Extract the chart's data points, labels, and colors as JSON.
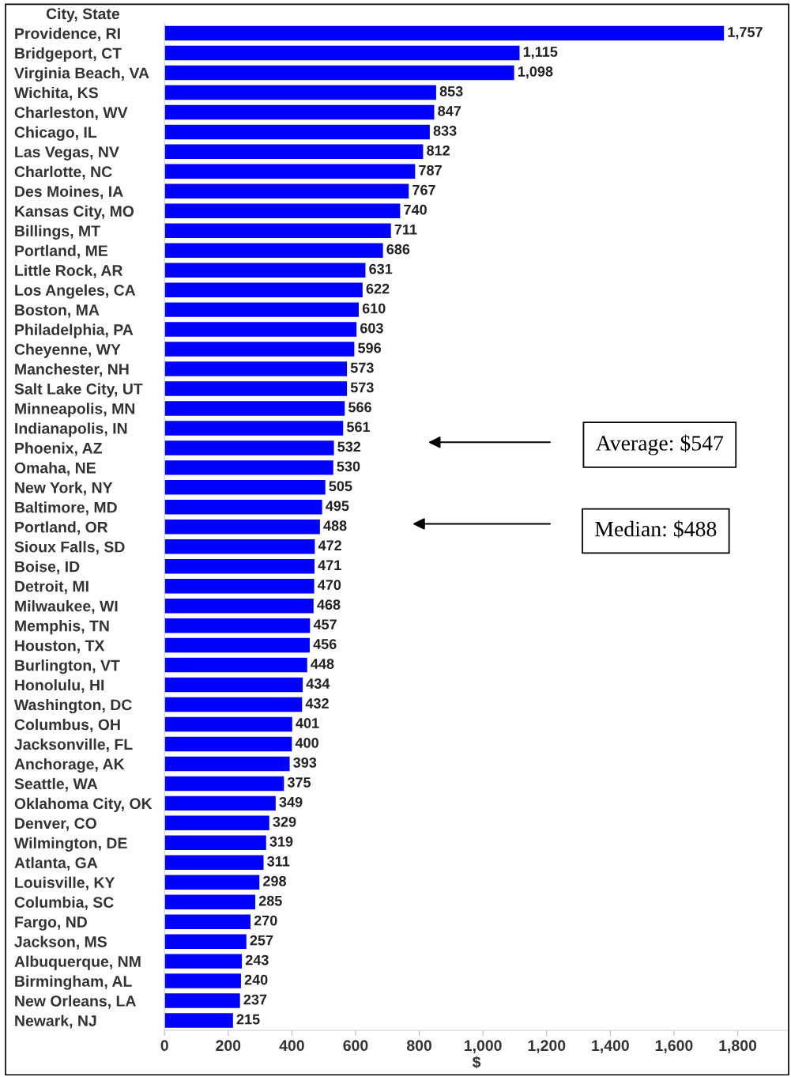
{
  "chart_data": {
    "type": "bar",
    "orientation": "horizontal",
    "ylabel": "City, State",
    "xlabel": "$",
    "categories": [
      "Providence, RI",
      "Bridgeport, CT",
      "Virginia Beach, VA",
      "Wichita, KS",
      "Charleston, WV",
      "Chicago, IL",
      "Las Vegas, NV",
      "Charlotte, NC",
      "Des Moines, IA",
      "Kansas City, MO",
      "Billings, MT",
      "Portland, ME",
      "Little Rock, AR",
      "Los Angeles, CA",
      "Boston, MA",
      "Philadelphia, PA",
      "Cheyenne, WY",
      "Manchester, NH",
      "Salt Lake City, UT",
      "Minneapolis, MN",
      "Indianapolis, IN",
      "Phoenix, AZ",
      "Omaha, NE",
      "New York, NY",
      "Baltimore, MD",
      "Portland, OR",
      "Sioux Falls, SD",
      "Boise, ID",
      "Detroit, MI",
      "Milwaukee, WI",
      "Memphis, TN",
      "Houston, TX",
      "Burlington, VT",
      "Honolulu, HI",
      "Washington, DC",
      "Columbus, OH",
      "Jacksonville, FL",
      "Anchorage, AK",
      "Seattle, WA",
      "Oklahoma City, OK",
      "Denver, CO",
      "Wilmington, DE",
      "Atlanta, GA",
      "Louisville, KY",
      "Columbia, SC",
      "Fargo, ND",
      "Jackson, MS",
      "Albuquerque, NM",
      "Birmingham, AL",
      "New Orleans, LA",
      "Newark, NJ"
    ],
    "values": [
      1757,
      1115,
      1098,
      853,
      847,
      833,
      812,
      787,
      767,
      740,
      711,
      686,
      631,
      622,
      610,
      603,
      596,
      573,
      573,
      566,
      561,
      532,
      530,
      505,
      495,
      488,
      472,
      471,
      470,
      468,
      457,
      456,
      448,
      434,
      432,
      401,
      400,
      393,
      375,
      349,
      329,
      319,
      311,
      298,
      285,
      270,
      257,
      243,
      240,
      237,
      215
    ],
    "value_labels": [
      "1,757",
      "1,115",
      "1,098",
      "853",
      "847",
      "833",
      "812",
      "787",
      "767",
      "740",
      "711",
      "686",
      "631",
      "622",
      "610",
      "603",
      "596",
      "573",
      "573",
      "566",
      "561",
      "532",
      "530",
      "505",
      "495",
      "488",
      "472",
      "471",
      "470",
      "468",
      "457",
      "456",
      "448",
      "434",
      "432",
      "401",
      "400",
      "393",
      "375",
      "349",
      "329",
      "319",
      "311",
      "298",
      "285",
      "270",
      "257",
      "243",
      "240",
      "237",
      "215"
    ],
    "color": "#0000ff",
    "xlim": [
      0,
      1960
    ],
    "xticks": [
      0,
      200,
      400,
      600,
      800,
      {
        "value": 1000,
        "label": "1,000"
      },
      {
        "value": 1200,
        "label": "1,200"
      },
      {
        "value": 1400,
        "label": "1,400"
      },
      {
        "value": 1600,
        "label": "1,600"
      },
      {
        "value": 1800,
        "label": "1,800"
      }
    ],
    "grid": false,
    "annotations": [
      "Average: $547",
      "Median: $488"
    ]
  }
}
